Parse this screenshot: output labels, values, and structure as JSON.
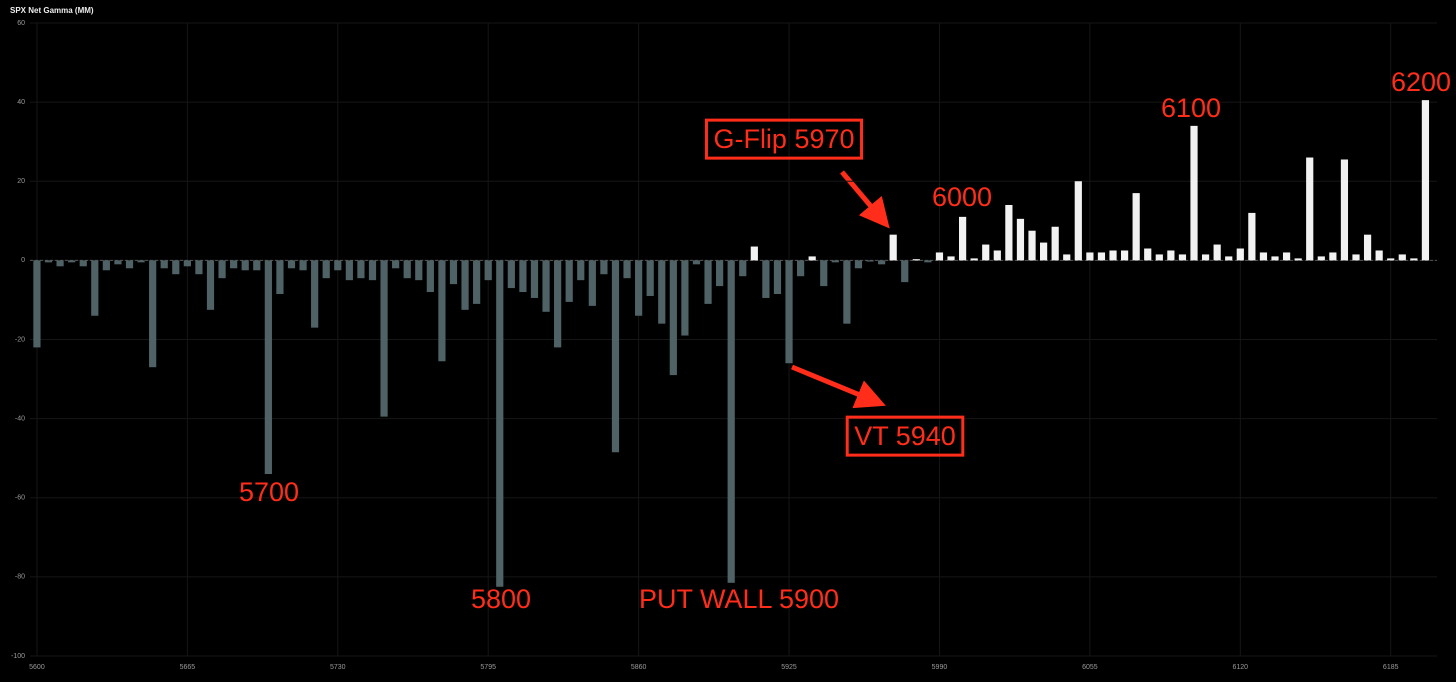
{
  "chart_data": {
    "type": "bar",
    "title": "SPX Net Gamma (MM)",
    "x": [
      5600,
      5605,
      5610,
      5615,
      5620,
      5625,
      5630,
      5635,
      5640,
      5645,
      5650,
      5655,
      5660,
      5665,
      5670,
      5675,
      5680,
      5685,
      5690,
      5695,
      5700,
      5705,
      5710,
      5715,
      5720,
      5725,
      5730,
      5735,
      5740,
      5745,
      5750,
      5755,
      5760,
      5765,
      5770,
      5775,
      5780,
      5785,
      5790,
      5795,
      5800,
      5805,
      5810,
      5815,
      5820,
      5825,
      5830,
      5835,
      5840,
      5845,
      5850,
      5855,
      5860,
      5865,
      5870,
      5875,
      5880,
      5885,
      5890,
      5895,
      5900,
      5905,
      5910,
      5915,
      5920,
      5925,
      5930,
      5935,
      5940,
      5945,
      5950,
      5955,
      5960,
      5965,
      5970,
      5975,
      5980,
      5985,
      5990,
      5995,
      6000,
      6005,
      6010,
      6015,
      6020,
      6025,
      6030,
      6035,
      6040,
      6045,
      6050,
      6055,
      6060,
      6065,
      6070,
      6075,
      6080,
      6085,
      6090,
      6095,
      6100,
      6105,
      6110,
      6115,
      6120,
      6125,
      6130,
      6135,
      6140,
      6145,
      6150,
      6155,
      6160,
      6165,
      6170,
      6175,
      6180,
      6185,
      6190,
      6195,
      6200
    ],
    "values": [
      -22,
      -0.5,
      -1.5,
      -0.5,
      -1.5,
      -14,
      -2.5,
      -1,
      -2,
      -0.5,
      -27,
      -2,
      -3.5,
      -1.5,
      -3.5,
      -12.5,
      -4.5,
      -2,
      -2.5,
      -2.5,
      -54,
      -8.5,
      -2,
      -2.5,
      -17,
      -4.5,
      -2.5,
      -5,
      -4.5,
      -5,
      -39.5,
      -2,
      -4.5,
      -5,
      -8,
      -25.5,
      -6,
      -12.5,
      -11,
      -5,
      -82.5,
      -7,
      -8,
      -9.5,
      -13,
      -22,
      -10.5,
      -5,
      -11.5,
      -3.5,
      -48.5,
      -4.5,
      -14,
      -9,
      -16,
      -29,
      -19,
      -1,
      -11,
      -6.5,
      -81.5,
      -4,
      3.5,
      -9.5,
      -8.5,
      -26,
      -4,
      1,
      -6.5,
      -0.5,
      -16,
      -2,
      -0.3,
      -1,
      6.5,
      -5.5,
      0.3,
      -0.5,
      2,
      1,
      11,
      0.5,
      4,
      2.5,
      14,
      10.5,
      7.5,
      4.5,
      8.5,
      1.5,
      20,
      2,
      2,
      2.5,
      2.5,
      17,
      3,
      1.5,
      2.5,
      1.5,
      34,
      1.5,
      4,
      1,
      3,
      12,
      2,
      1,
      2,
      0.5,
      26,
      1,
      2,
      25.5,
      1.5,
      6.5,
      2.5,
      0.5,
      1.5,
      0.5,
      40.5
    ],
    "positive_color": "#f2f2f2",
    "negative_color": "#4f6266",
    "xlim": [
      5597,
      6205
    ],
    "xticks": [
      5600,
      5665,
      5730,
      5795,
      5860,
      5925,
      5990,
      6055,
      6120,
      6185
    ],
    "ylim": [
      -100,
      60
    ],
    "yticks": [
      -100,
      -80,
      -60,
      -40,
      -20,
      0,
      20,
      40,
      60
    ],
    "grid": true,
    "annotations": [
      "5700",
      "5800",
      "PUT WALL 5900",
      "VT 5940",
      "G-Flip 5970",
      "6000",
      "6100",
      "6200"
    ]
  }
}
